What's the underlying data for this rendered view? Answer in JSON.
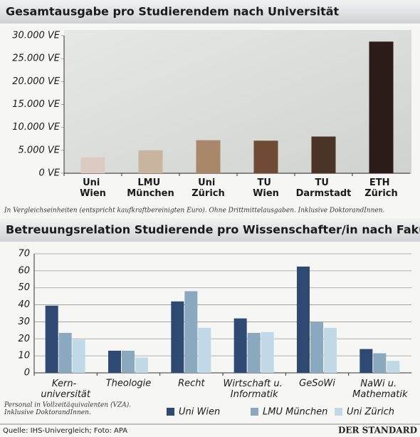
{
  "chart_data": [
    {
      "type": "bar",
      "title": "Gesamtausgabe pro Studierendem nach Universität",
      "categories": [
        "Uni\nWien",
        "LMU\nMünchen",
        "Uni\nZürich",
        "TU\nWien",
        "TU\nDarmstadt",
        "ETH\nZürich"
      ],
      "values": [
        3500,
        5000,
        7200,
        7100,
        8000,
        28700
      ],
      "colors": [
        "#dccbc2",
        "#c9b4a0",
        "#a9876a",
        "#6f4b35",
        "#4b3327",
        "#2b1b19"
      ],
      "ylim": [
        0,
        30000
      ],
      "yticks": [
        {
          "value": 0,
          "label": "0 VE"
        },
        {
          "value": 5000,
          "label": "5.000 VE"
        },
        {
          "value": 10000,
          "label": "10.000 VE"
        },
        {
          "value": 15000,
          "label": "15.000 VE"
        },
        {
          "value": 20000,
          "label": "20.000 VE"
        },
        {
          "value": 25000,
          "label": "25.000 VE"
        },
        {
          "value": 30000,
          "label": "30.000 VE"
        }
      ],
      "note": "In Vergleichseinheiten (entspricht kaufkraftbereinigten Euro). Ohne Drittmittelausgaben. Inklusive DoktorandInnen."
    },
    {
      "type": "bar",
      "title": "Betreuungsrelation Studierende pro Wissenschafter/in nach Fakultät",
      "categories": [
        "Kern-\nuniversität",
        "Theologie",
        "Recht",
        "Wirtschaft u.\nInformatik",
        "GeSoWi",
        "NaWi u.\nMathematik"
      ],
      "series": [
        {
          "name": "Uni Wien",
          "color": "#2f4a72",
          "values": [
            39.5,
            13,
            42,
            32,
            62.5,
            14
          ]
        },
        {
          "name": "LMU München",
          "color": "#8aa9bf",
          "values": [
            23.5,
            13,
            48,
            23.5,
            30,
            11.5
          ]
        },
        {
          "name": "Uni Zürich",
          "color": "#c1d9e6",
          "values": [
            19.5,
            9,
            26.5,
            24,
            26.5,
            7
          ]
        }
      ],
      "ylim": [
        0,
        70
      ],
      "yticks": [
        0,
        10,
        20,
        30,
        40,
        50,
        60,
        70
      ],
      "note": "Personal in Vollzeitäquivalenten (VZA).\nInklusive DoktorandInnen."
    }
  ],
  "footer": {
    "source": "Quelle: IHS-Univergleich; Foto: APA",
    "brand": "DER STANDARD"
  }
}
